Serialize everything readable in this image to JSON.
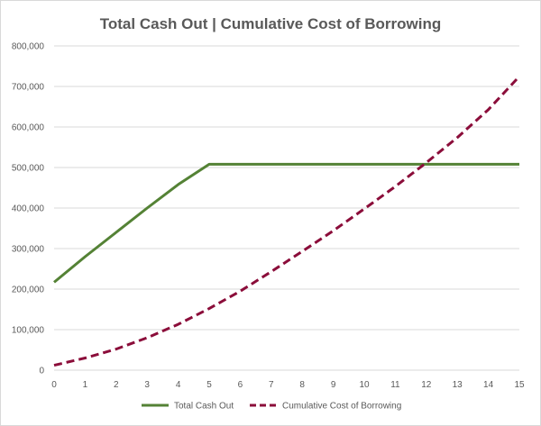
{
  "chart_data": {
    "type": "line",
    "title": "Total Cash Out | Cumulative Cost of Borrowing",
    "xlabel": "",
    "ylabel": "",
    "x": [
      0,
      1,
      2,
      3,
      4,
      5,
      6,
      7,
      8,
      9,
      10,
      11,
      12,
      13,
      14,
      15
    ],
    "x_tick_labels": [
      "0",
      "1",
      "2",
      "3",
      "4",
      "5",
      "6",
      "7",
      "8",
      "9",
      "10",
      "11",
      "12",
      "13",
      "14",
      "15"
    ],
    "ylim": [
      0,
      800000
    ],
    "y_ticks": [
      0,
      100000,
      200000,
      300000,
      400000,
      500000,
      600000,
      700000,
      800000
    ],
    "y_tick_labels": [
      "0",
      "100,000",
      "200,000",
      "300,000",
      "400,000",
      "500,000",
      "600,000",
      "700,000",
      "800,000"
    ],
    "grid": true,
    "legend_position": "bottom",
    "series": [
      {
        "name": "Total Cash Out",
        "color": "#548235",
        "style": "solid",
        "values": [
          217000,
          280000,
          340000,
          400000,
          458000,
          508000,
          508000,
          508000,
          508000,
          508000,
          508000,
          508000,
          508000,
          508000,
          508000,
          508000
        ]
      },
      {
        "name": "Cumulative Cost of Borrowing",
        "color": "#8b0d3a",
        "style": "dashed",
        "values": [
          12000,
          30000,
          52000,
          80000,
          113000,
          152000,
          195000,
          243000,
          293000,
          344000,
          398000,
          453000,
          512000,
          574000,
          643000,
          725000
        ]
      }
    ]
  }
}
